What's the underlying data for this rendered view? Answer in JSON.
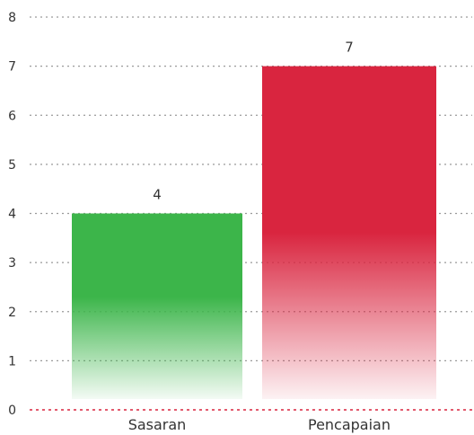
{
  "chart_data": {
    "type": "bar",
    "title": "",
    "xlabel": "",
    "ylabel": "",
    "categories": [
      "Sasaran",
      "Pencapaian"
    ],
    "values": [
      4,
      7
    ],
    "data_labels": [
      "4",
      "7"
    ],
    "ylim": [
      0,
      8
    ],
    "yticks": [
      0,
      1,
      2,
      3,
      4,
      5,
      6,
      7,
      8
    ],
    "ytick_labels": [
      "0",
      "1",
      "2",
      "3",
      "4",
      "5",
      "6",
      "7",
      "8"
    ],
    "grid": true,
    "legend": "none",
    "bar_colors": [
      "#3cb54a",
      "#d9253f"
    ],
    "gridline_color": "#9a9a9a",
    "baseline_color": "#d9253f",
    "bar_fill_style": "gradient-fade-to-bottom"
  }
}
